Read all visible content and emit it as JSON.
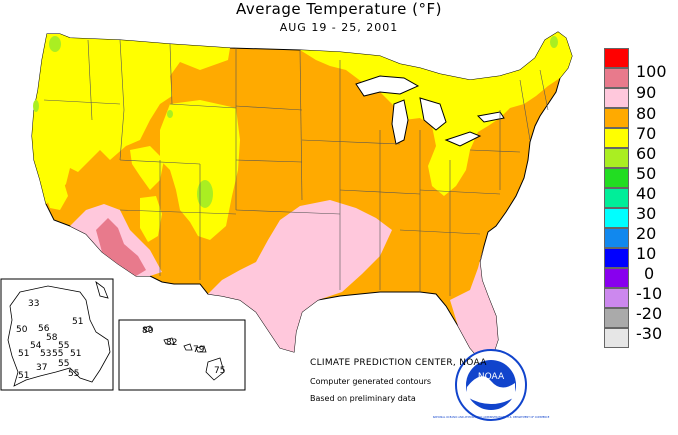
{
  "header": {
    "title": "Average Temperature (°F)",
    "dates": "AUG 19 - 25, 2001"
  },
  "legend": {
    "items": [
      {
        "label": "100",
        "color": "#ff0000"
      },
      {
        "label": "90",
        "color": "#e87a8c"
      },
      {
        "label": "80",
        "color": "#ffc8dc"
      },
      {
        "label": "70",
        "color": "#ffaa00"
      },
      {
        "label": "60",
        "color": "#ffff00"
      },
      {
        "label": "50",
        "color": "#aaee22"
      },
      {
        "label": "40",
        "color": "#22dd22"
      },
      {
        "label": "30",
        "color": "#00ee99"
      },
      {
        "label": "20",
        "color": "#00ffff"
      },
      {
        "label": "10",
        "color": "#1188ee"
      },
      {
        "label": "0",
        "color": "#0000ff"
      },
      {
        "label": "-10",
        "color": "#8800ee"
      },
      {
        "label": "-20",
        "color": "#cc88ee"
      },
      {
        "label": "-30",
        "color": "#aaaaaa"
      },
      {
        "label": "",
        "color": "#e6e6e6"
      }
    ]
  },
  "alaska": {
    "stations": [
      "33",
      "51",
      "50",
      "56",
      "58",
      "55",
      "51",
      "54",
      "53",
      "55",
      "51",
      "37",
      "55",
      "55",
      "51"
    ]
  },
  "hawaii": {
    "stations": [
      "80",
      "82",
      "79",
      "75"
    ]
  },
  "credits": {
    "center": "CLIMATE PREDICTION CENTER, NOAA",
    "computed": "Computer generated contours",
    "basis": "Based on preliminary data"
  },
  "logo": {
    "text": "NOAA",
    "ring_text": "NATIONAL OCEANIC AND ATMOSPHERIC ADMINISTRATION · U.S. DEPARTMENT OF COMMERCE"
  },
  "colors": {
    "yellow": "#ffff00",
    "orange": "#ffaa00",
    "pink": "#ffc8dc",
    "rose": "#e87a8c",
    "green": "#aaee22",
    "lake": "#ffffff",
    "noaa_blue": "#1144cc"
  }
}
